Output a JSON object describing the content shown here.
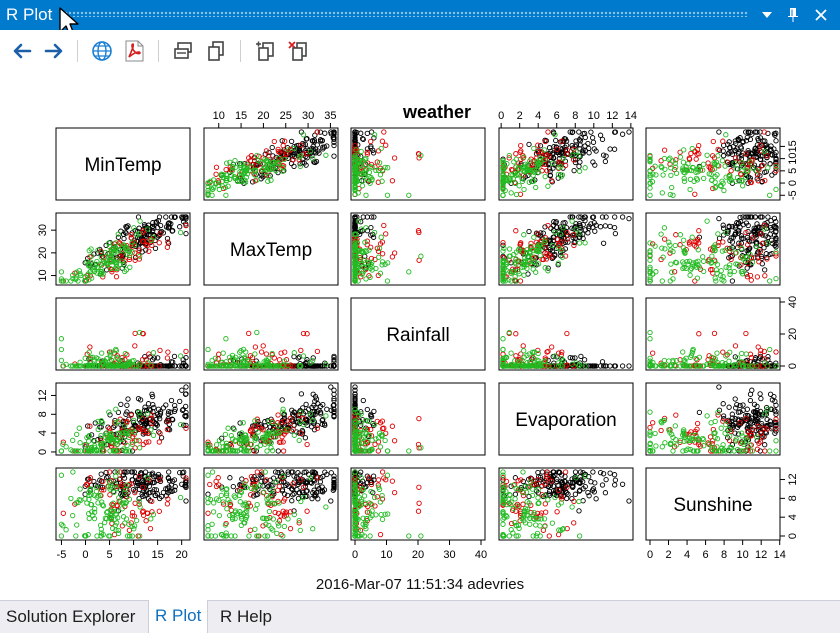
{
  "window": {
    "title": "R Plot",
    "controls": [
      {
        "name": "dropdown-icon",
        "glyph": "▾"
      },
      {
        "name": "pin-icon",
        "glyph": "📌"
      },
      {
        "name": "close-icon",
        "glyph": "✕"
      }
    ]
  },
  "toolbar": {
    "buttons": [
      "back-arrow-icon",
      "forward-arrow-icon",
      "globe-icon",
      "pdf-icon",
      "copy-bitmap-icon",
      "copy-metafile-icon",
      "export-icon",
      "clear-plot-icon"
    ]
  },
  "chart_data": {
    "type": "scatter",
    "title": "weather",
    "variables": [
      "MinTemp",
      "MaxTemp",
      "Rainfall",
      "Evaporation",
      "Sunshine"
    ],
    "ranges": {
      "MinTemp": [
        -5.3,
        20.9
      ],
      "MaxTemp": [
        7.6,
        35.8
      ],
      "Rainfall": [
        0,
        40
      ],
      "Evaporation": [
        0.2,
        13.8
      ],
      "Sunshine": [
        0,
        13.6
      ]
    },
    "ticks": {
      "MinTemp": [
        -5,
        0,
        5,
        10,
        15,
        20
      ],
      "MaxTemp": [
        10,
        15,
        20,
        25,
        30,
        35
      ],
      "Rainfall": [
        0,
        10,
        20,
        30,
        40
      ],
      "Evaporation": [
        0,
        2,
        4,
        6,
        8,
        10,
        12,
        14
      ],
      "Sunshine": [
        0,
        2,
        4,
        6,
        8,
        10,
        12,
        14
      ]
    },
    "left_tick_labels": {
      "MaxTemp": [
        10,
        20,
        30
      ],
      "Evaporation": [
        0,
        4,
        8,
        12
      ]
    },
    "right_tick_labels": {
      "MinTemp": [
        -5,
        0,
        5,
        10,
        15
      ],
      "Rainfall": [
        0,
        20,
        40
      ],
      "Sunshine": [
        0,
        4,
        8,
        12
      ]
    },
    "groups": [
      {
        "color": "#000000",
        "n": 150
      },
      {
        "color": "#df0000",
        "n": 60
      },
      {
        "color": "#22bb22",
        "n": 120
      }
    ],
    "points": [],
    "grid": false,
    "legend": "none"
  },
  "footer": "2016-Mar-07 11:51:34 adevries",
  "tabs": [
    {
      "label": "Solution Explorer",
      "active": false
    },
    {
      "label": "R Plot",
      "active": true
    },
    {
      "label": "R Help",
      "active": false
    }
  ]
}
